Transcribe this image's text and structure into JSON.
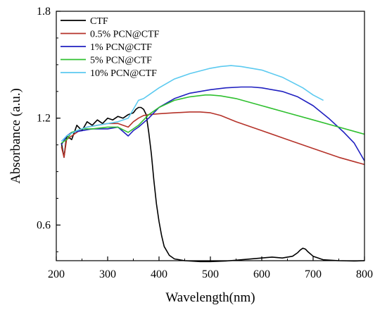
{
  "chart_data": {
    "type": "line",
    "title": "",
    "xlabel": "Wavelength(nm)",
    "ylabel": "Absorbance (a.u.)",
    "xlim": [
      200,
      800
    ],
    "ylim": [
      0.4,
      1.8
    ],
    "xticks": [
      200,
      300,
      400,
      500,
      600,
      700,
      800
    ],
    "xtick_labels": [
      "200",
      "300",
      "400",
      "500",
      "600",
      "700",
      "800"
    ],
    "yticks": [
      0.6,
      1.2,
      1.8
    ],
    "ytick_labels": [
      "0.6",
      "1.2",
      "1.8"
    ],
    "grid": false,
    "legend_position": "top-left",
    "series": [
      {
        "name": "CTF",
        "color": "#000000",
        "x": [
          210,
          215,
          220,
          230,
          240,
          250,
          260,
          270,
          280,
          290,
          300,
          310,
          320,
          330,
          340,
          350,
          355,
          360,
          365,
          370,
          375,
          380,
          385,
          390,
          395,
          400,
          405,
          410,
          420,
          430,
          450,
          480,
          500,
          530,
          560,
          600,
          620,
          640,
          660,
          670,
          675,
          680,
          685,
          690,
          700,
          720,
          750,
          780,
          800
        ],
        "y": [
          1.06,
          0.98,
          1.1,
          1.08,
          1.16,
          1.13,
          1.18,
          1.16,
          1.19,
          1.17,
          1.2,
          1.19,
          1.21,
          1.2,
          1.22,
          1.23,
          1.25,
          1.26,
          1.26,
          1.25,
          1.22,
          1.12,
          1.0,
          0.85,
          0.72,
          0.62,
          0.54,
          0.48,
          0.43,
          0.41,
          0.4,
          0.395,
          0.395,
          0.398,
          0.405,
          0.415,
          0.42,
          0.415,
          0.425,
          0.445,
          0.46,
          0.47,
          0.465,
          0.45,
          0.425,
          0.405,
          0.4,
          0.398,
          0.4
        ]
      },
      {
        "name": "0.5% PCN@CTF",
        "color": "#b5332a",
        "x": [
          210,
          215,
          220,
          230,
          240,
          250,
          260,
          280,
          300,
          320,
          340,
          350,
          360,
          370,
          380,
          400,
          430,
          460,
          480,
          500,
          520,
          550,
          600,
          650,
          700,
          750,
          800
        ],
        "y": [
          1.04,
          0.98,
          1.08,
          1.1,
          1.12,
          1.14,
          1.15,
          1.16,
          1.17,
          1.17,
          1.15,
          1.18,
          1.2,
          1.215,
          1.22,
          1.225,
          1.23,
          1.235,
          1.235,
          1.23,
          1.215,
          1.18,
          1.13,
          1.08,
          1.03,
          0.98,
          0.94
        ]
      },
      {
        "name": "1% PCN@CTF",
        "color": "#2020c0",
        "x": [
          210,
          220,
          230,
          250,
          270,
          300,
          320,
          340,
          350,
          360,
          380,
          400,
          430,
          460,
          500,
          530,
          560,
          580,
          600,
          640,
          670,
          700,
          730,
          760,
          780,
          800
        ],
        "y": [
          1.05,
          1.1,
          1.12,
          1.13,
          1.14,
          1.14,
          1.15,
          1.1,
          1.13,
          1.15,
          1.2,
          1.26,
          1.31,
          1.34,
          1.36,
          1.37,
          1.375,
          1.375,
          1.37,
          1.35,
          1.32,
          1.27,
          1.2,
          1.12,
          1.06,
          0.96
        ]
      },
      {
        "name": "5% PCN@CTF",
        "color": "#30c030",
        "x": [
          210,
          220,
          230,
          250,
          270,
          300,
          320,
          340,
          360,
          380,
          400,
          430,
          460,
          490,
          500,
          520,
          550,
          600,
          650,
          700,
          750,
          800
        ],
        "y": [
          1.06,
          1.08,
          1.12,
          1.14,
          1.14,
          1.15,
          1.15,
          1.12,
          1.16,
          1.22,
          1.26,
          1.3,
          1.32,
          1.33,
          1.33,
          1.325,
          1.31,
          1.27,
          1.23,
          1.19,
          1.15,
          1.11
        ]
      },
      {
        "name": "10% PCN@CTF",
        "color": "#5ccaf0",
        "x": [
          210,
          220,
          240,
          260,
          280,
          300,
          320,
          340,
          350,
          360,
          370,
          380,
          400,
          430,
          460,
          500,
          520,
          540,
          560,
          600,
          640,
          680,
          700,
          720
        ],
        "y": [
          1.07,
          1.1,
          1.13,
          1.15,
          1.16,
          1.17,
          1.18,
          1.2,
          1.25,
          1.3,
          1.31,
          1.33,
          1.37,
          1.42,
          1.45,
          1.48,
          1.49,
          1.495,
          1.49,
          1.47,
          1.43,
          1.37,
          1.33,
          1.3
        ]
      }
    ]
  }
}
